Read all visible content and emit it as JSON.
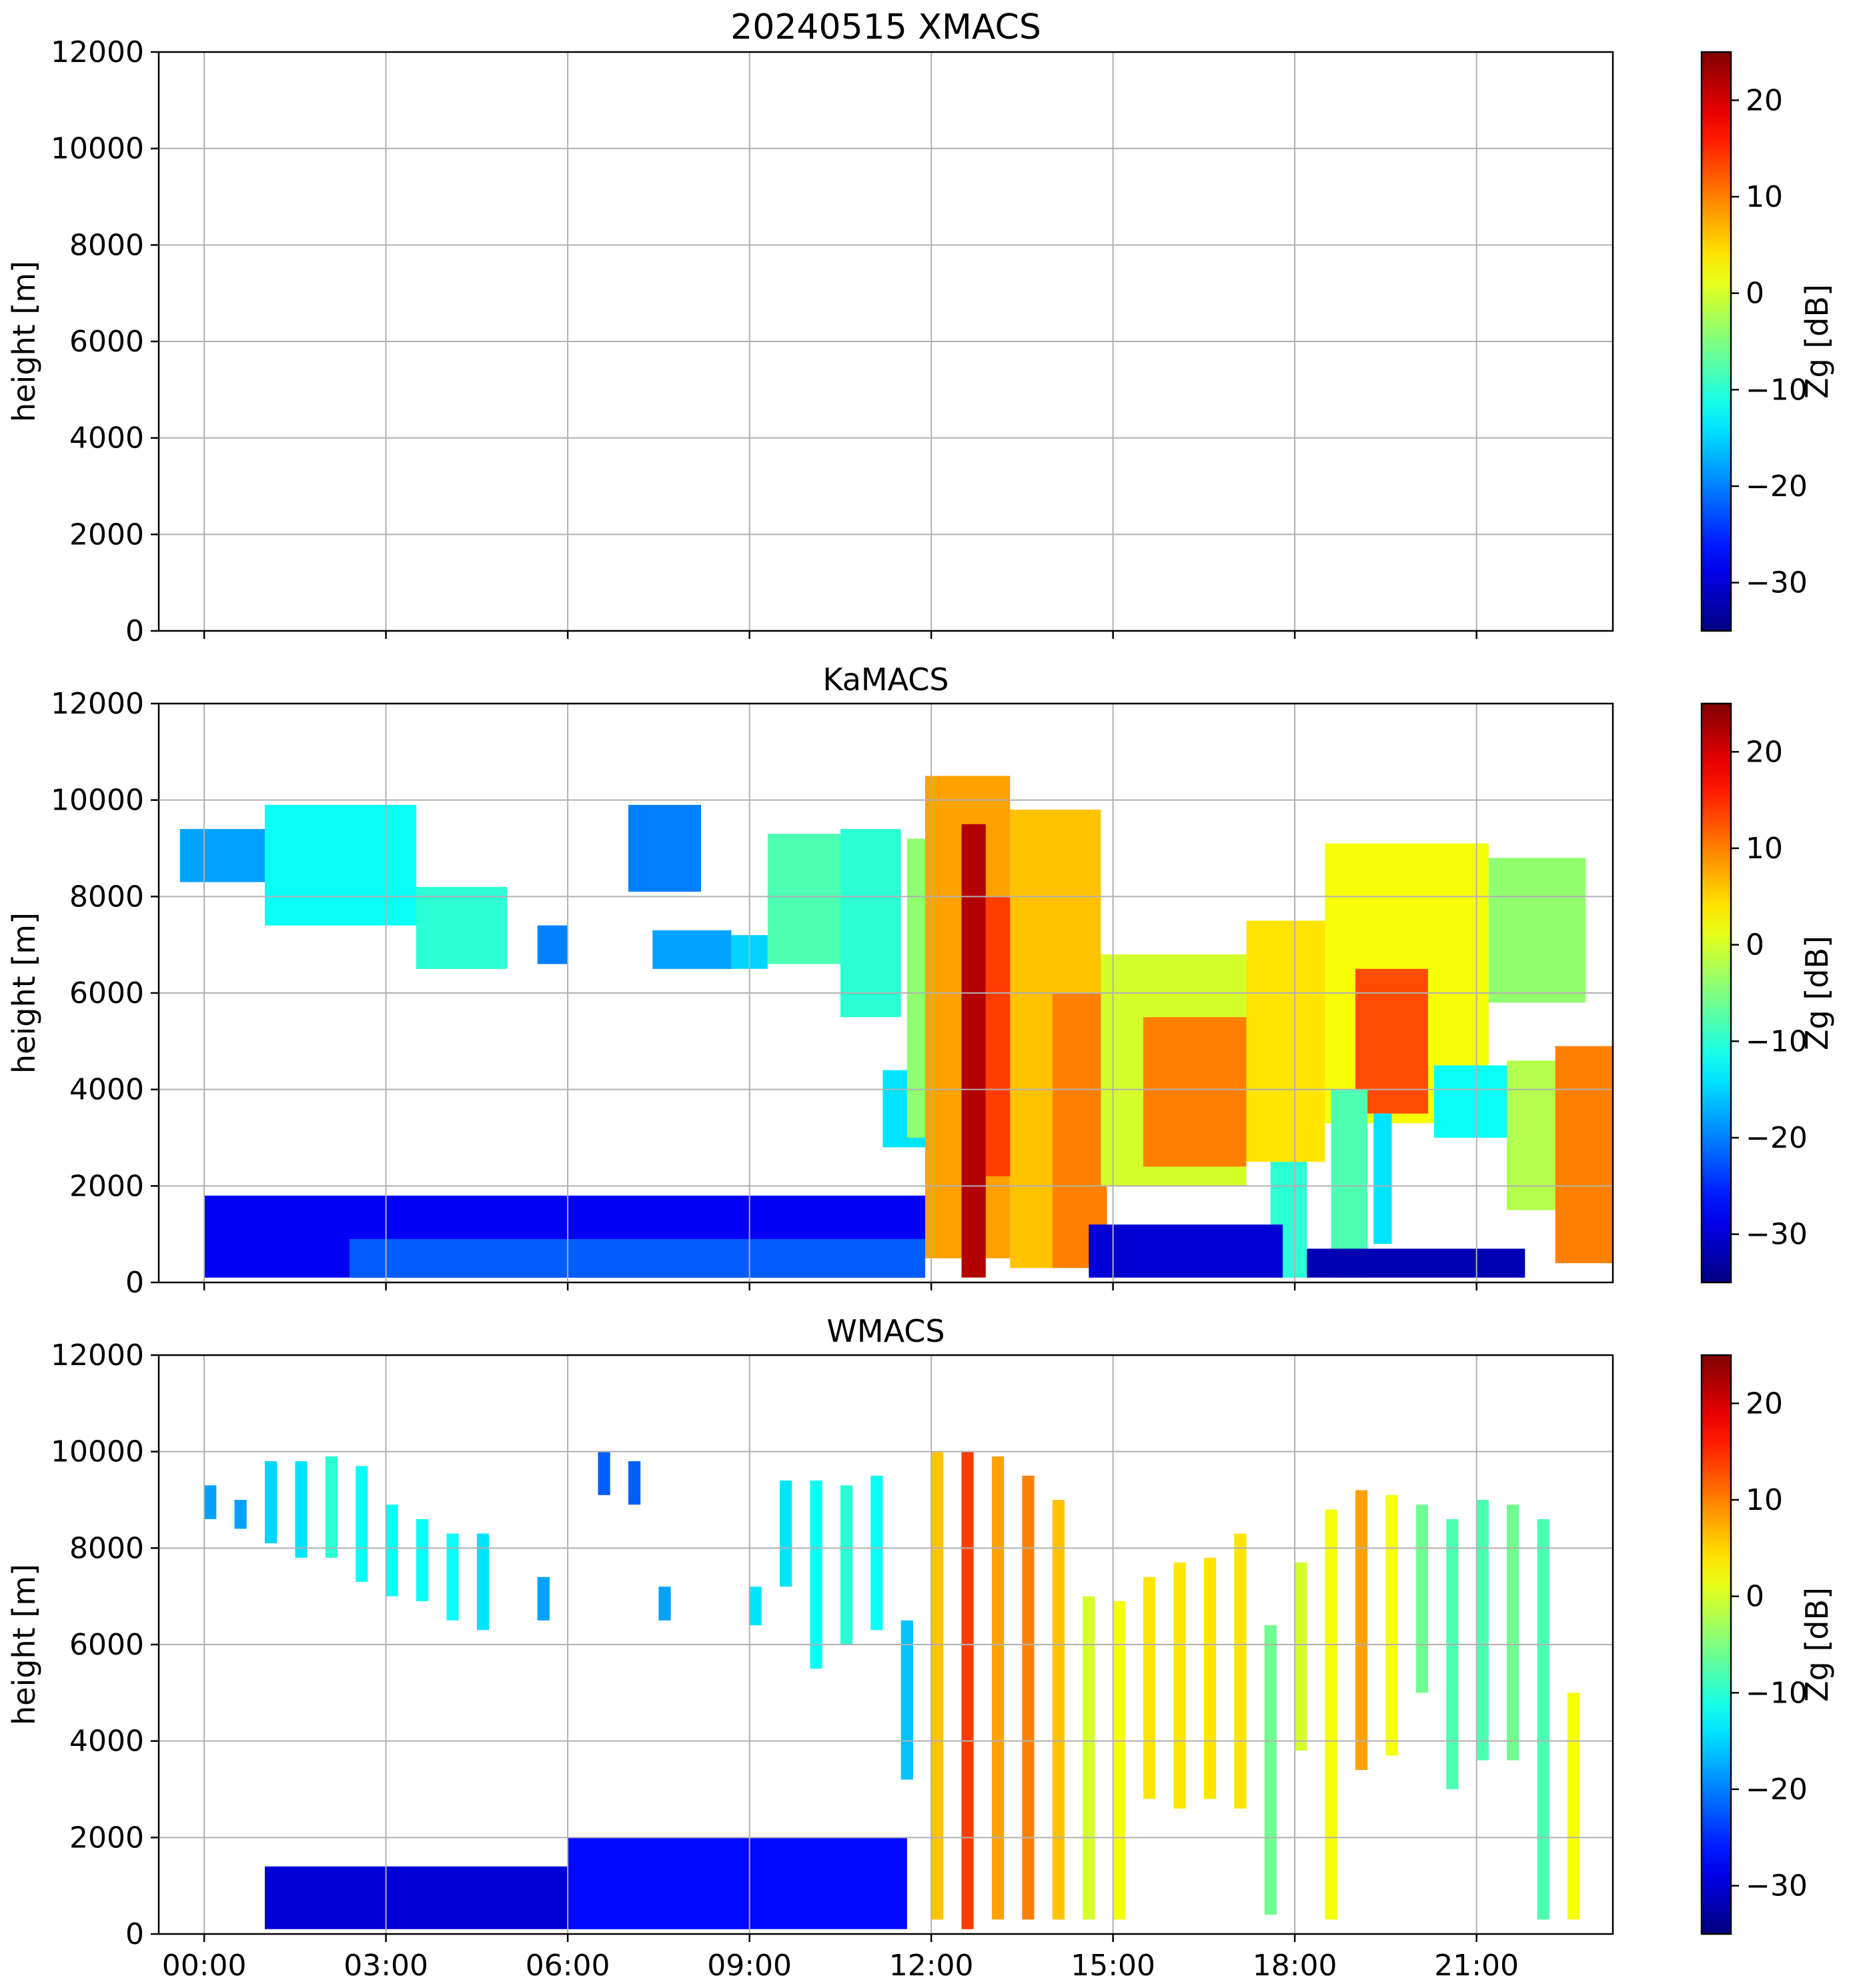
{
  "chart_data": [
    {
      "type": "heatmap",
      "title": "20240515 XMACS",
      "xlabel": "",
      "ylabel": "height [m]",
      "x_tick_labels": [
        "00:00",
        "03:00",
        "06:00",
        "09:00",
        "12:00",
        "15:00",
        "18:00",
        "21:00"
      ],
      "x_range_hours": [
        -0.75,
        23.25
      ],
      "ylim": [
        0,
        12000
      ],
      "y_ticks": [
        0,
        2000,
        4000,
        6000,
        8000,
        10000,
        12000
      ],
      "grid": true,
      "colorbar": {
        "label": "Zg [dB]",
        "range": [
          -35,
          25
        ],
        "ticks": [
          -30,
          -20,
          -10,
          0,
          10,
          20
        ],
        "tick_labels": [
          "−30",
          "−20",
          "−10",
          "0",
          "10",
          "20"
        ],
        "colormap": "jet"
      },
      "echoes": []
    },
    {
      "type": "heatmap",
      "title": "KaMACS",
      "xlabel": "",
      "ylabel": "height [m]",
      "x_tick_labels": [
        "00:00",
        "03:00",
        "06:00",
        "09:00",
        "12:00",
        "15:00",
        "18:00",
        "21:00"
      ],
      "x_range_hours": [
        -0.75,
        23.25
      ],
      "ylim": [
        0,
        12000
      ],
      "y_ticks": [
        0,
        2000,
        4000,
        6000,
        8000,
        10000,
        12000
      ],
      "grid": true,
      "colorbar": {
        "label": "Zg [dB]",
        "range": [
          -35,
          25
        ],
        "ticks": [
          -30,
          -20,
          -10,
          0,
          10,
          20
        ],
        "tick_labels": [
          "−30",
          "−20",
          "−10",
          "0",
          "10",
          "20"
        ],
        "colormap": "jet"
      },
      "echoes": [
        {
          "t0": -0.4,
          "t1": 1.5,
          "h0": 8300,
          "h1": 9400,
          "z": -18
        },
        {
          "t0": 1.0,
          "t1": 3.5,
          "h0": 7400,
          "h1": 9900,
          "z": -12
        },
        {
          "t0": 3.5,
          "t1": 5.0,
          "h0": 6500,
          "h1": 8200,
          "z": -10
        },
        {
          "t0": 5.5,
          "t1": 6.0,
          "h0": 6600,
          "h1": 7400,
          "z": -20
        },
        {
          "t0": 7.0,
          "t1": 8.2,
          "h0": 8100,
          "h1": 9900,
          "z": -20
        },
        {
          "t0": 7.4,
          "t1": 8.7,
          "h0": 6500,
          "h1": 7300,
          "z": -18
        },
        {
          "t0": 8.7,
          "t1": 9.3,
          "h0": 6500,
          "h1": 7200,
          "z": -15
        },
        {
          "t0": 9.3,
          "t1": 10.5,
          "h0": 6600,
          "h1": 9300,
          "z": -8
        },
        {
          "t0": 10.5,
          "t1": 11.5,
          "h0": 5500,
          "h1": 9400,
          "z": -10
        },
        {
          "t0": 11.2,
          "t1": 11.9,
          "h0": 2800,
          "h1": 4400,
          "z": -14
        },
        {
          "t0": 11.6,
          "t1": 12.4,
          "h0": 3000,
          "h1": 9200,
          "z": -4
        },
        {
          "t0": 11.9,
          "t1": 13.3,
          "h0": 500,
          "h1": 10500,
          "z": 8
        },
        {
          "t0": 12.5,
          "t1": 12.9,
          "h0": 100,
          "h1": 9500,
          "z": 22
        },
        {
          "t0": 12.9,
          "t1": 14.0,
          "h0": 2200,
          "h1": 8000,
          "z": 14
        },
        {
          "t0": 13.3,
          "t1": 14.8,
          "h0": 300,
          "h1": 9800,
          "z": 6
        },
        {
          "t0": 14.0,
          "t1": 14.9,
          "h0": 300,
          "h1": 6000,
          "z": 10
        },
        {
          "t0": 14.8,
          "t1": 17.2,
          "h0": 2000,
          "h1": 6800,
          "z": 0
        },
        {
          "t0": 15.5,
          "t1": 17.2,
          "h0": 2400,
          "h1": 5500,
          "z": 10
        },
        {
          "t0": 17.2,
          "t1": 18.5,
          "h0": 2500,
          "h1": 7500,
          "z": 4
        },
        {
          "t0": 17.6,
          "t1": 18.2,
          "h0": 100,
          "h1": 2500,
          "z": -10
        },
        {
          "t0": 18.5,
          "t1": 21.2,
          "h0": 3300,
          "h1": 9100,
          "z": 2
        },
        {
          "t0": 19.0,
          "t1": 20.2,
          "h0": 3500,
          "h1": 6500,
          "z": 13
        },
        {
          "t0": 18.6,
          "t1": 19.2,
          "h0": 100,
          "h1": 4000,
          "z": -8
        },
        {
          "t0": 19.3,
          "t1": 19.6,
          "h0": 800,
          "h1": 3500,
          "z": -14
        },
        {
          "t0": 21.2,
          "t1": 22.8,
          "h0": 5800,
          "h1": 8800,
          "z": -4
        },
        {
          "t0": 20.3,
          "t1": 21.5,
          "h0": 3000,
          "h1": 4500,
          "z": -12
        },
        {
          "t0": 21.5,
          "t1": 22.6,
          "h0": 1500,
          "h1": 4600,
          "z": -2
        },
        {
          "t0": 22.3,
          "t1": 23.25,
          "h0": 400,
          "h1": 4900,
          "z": 10
        },
        {
          "t0": 0.0,
          "t1": 11.9,
          "h0": 100,
          "h1": 1800,
          "z": -28
        },
        {
          "t0": 2.4,
          "t1": 11.9,
          "h0": 100,
          "h1": 900,
          "z": -22
        },
        {
          "t0": 14.6,
          "t1": 17.8,
          "h0": 100,
          "h1": 1200,
          "z": -30
        },
        {
          "t0": 18.2,
          "t1": 21.8,
          "h0": 100,
          "h1": 700,
          "z": -32
        }
      ]
    },
    {
      "type": "heatmap",
      "title": "WMACS",
      "xlabel": "",
      "ylabel": "height [m]",
      "x_tick_labels": [
        "00:00",
        "03:00",
        "06:00",
        "09:00",
        "12:00",
        "15:00",
        "18:00",
        "21:00"
      ],
      "x_range_hours": [
        -0.75,
        23.25
      ],
      "ylim": [
        0,
        12000
      ],
      "y_ticks": [
        0,
        2000,
        4000,
        6000,
        8000,
        10000,
        12000
      ],
      "grid": true,
      "colorbar": {
        "label": "Zg [dB]",
        "range": [
          -35,
          25
        ],
        "ticks": [
          -30,
          -20,
          -10,
          0,
          10,
          20
        ],
        "tick_labels": [
          "−30",
          "−20",
          "−10",
          "0",
          "10",
          "20"
        ],
        "colormap": "jet"
      },
      "echoes": [
        {
          "t0": 0.0,
          "t1": 0.2,
          "h0": 8600,
          "h1": 9300,
          "z": -18
        },
        {
          "t0": 0.5,
          "t1": 0.7,
          "h0": 8400,
          "h1": 9000,
          "z": -18
        },
        {
          "t0": 1.0,
          "t1": 1.2,
          "h0": 8100,
          "h1": 9800,
          "z": -15
        },
        {
          "t0": 1.5,
          "t1": 1.7,
          "h0": 7800,
          "h1": 9800,
          "z": -14
        },
        {
          "t0": 2.0,
          "t1": 2.2,
          "h0": 7800,
          "h1": 9900,
          "z": -10
        },
        {
          "t0": 2.5,
          "t1": 2.7,
          "h0": 7300,
          "h1": 9700,
          "z": -12
        },
        {
          "t0": 3.0,
          "t1": 3.2,
          "h0": 7000,
          "h1": 8900,
          "z": -12
        },
        {
          "t0": 3.5,
          "t1": 3.7,
          "h0": 6900,
          "h1": 8600,
          "z": -12
        },
        {
          "t0": 4.0,
          "t1": 4.2,
          "h0": 6500,
          "h1": 8300,
          "z": -12
        },
        {
          "t0": 4.5,
          "t1": 4.7,
          "h0": 6300,
          "h1": 8300,
          "z": -14
        },
        {
          "t0": 5.5,
          "t1": 5.7,
          "h0": 6500,
          "h1": 7400,
          "z": -18
        },
        {
          "t0": 6.5,
          "t1": 6.7,
          "h0": 9100,
          "h1": 10000,
          "z": -22
        },
        {
          "t0": 7.0,
          "t1": 7.2,
          "h0": 8900,
          "h1": 9800,
          "z": -22
        },
        {
          "t0": 7.5,
          "t1": 7.7,
          "h0": 6500,
          "h1": 7200,
          "z": -18
        },
        {
          "t0": 9.0,
          "t1": 9.2,
          "h0": 6400,
          "h1": 7200,
          "z": -14
        },
        {
          "t0": 9.5,
          "t1": 9.7,
          "h0": 7200,
          "h1": 9400,
          "z": -14
        },
        {
          "t0": 10.0,
          "t1": 10.2,
          "h0": 5500,
          "h1": 9400,
          "z": -12
        },
        {
          "t0": 10.5,
          "t1": 10.7,
          "h0": 6000,
          "h1": 9300,
          "z": -10
        },
        {
          "t0": 11.0,
          "t1": 11.2,
          "h0": 6300,
          "h1": 9500,
          "z": -12
        },
        {
          "t0": 11.5,
          "t1": 11.7,
          "h0": 3200,
          "h1": 6500,
          "z": -16
        },
        {
          "t0": 12.0,
          "t1": 12.2,
          "h0": 300,
          "h1": 10000,
          "z": 6
        },
        {
          "t0": 12.5,
          "t1": 12.7,
          "h0": 100,
          "h1": 10000,
          "z": 14
        },
        {
          "t0": 13.0,
          "t1": 13.2,
          "h0": 300,
          "h1": 9900,
          "z": 8
        },
        {
          "t0": 13.5,
          "t1": 13.7,
          "h0": 300,
          "h1": 9500,
          "z": 10
        },
        {
          "t0": 14.0,
          "t1": 14.2,
          "h0": 300,
          "h1": 9000,
          "z": 6
        },
        {
          "t0": 14.5,
          "t1": 14.7,
          "h0": 300,
          "h1": 7000,
          "z": 0
        },
        {
          "t0": 15.0,
          "t1": 15.2,
          "h0": 300,
          "h1": 6900,
          "z": 2
        },
        {
          "t0": 15.5,
          "t1": 15.7,
          "h0": 2800,
          "h1": 7400,
          "z": 4
        },
        {
          "t0": 16.0,
          "t1": 16.2,
          "h0": 2600,
          "h1": 7700,
          "z": 4
        },
        {
          "t0": 16.5,
          "t1": 16.7,
          "h0": 2800,
          "h1": 7800,
          "z": 4
        },
        {
          "t0": 17.0,
          "t1": 17.2,
          "h0": 2600,
          "h1": 8300,
          "z": 4
        },
        {
          "t0": 17.5,
          "t1": 17.7,
          "h0": 400,
          "h1": 6400,
          "z": -6
        },
        {
          "t0": 18.0,
          "t1": 18.2,
          "h0": 3800,
          "h1": 7700,
          "z": 0
        },
        {
          "t0": 18.5,
          "t1": 18.7,
          "h0": 300,
          "h1": 8800,
          "z": 2
        },
        {
          "t0": 19.0,
          "t1": 19.2,
          "h0": 3400,
          "h1": 9200,
          "z": 8
        },
        {
          "t0": 19.5,
          "t1": 19.7,
          "h0": 3700,
          "h1": 9100,
          "z": 2
        },
        {
          "t0": 20.0,
          "t1": 20.2,
          "h0": 5000,
          "h1": 8900,
          "z": -6
        },
        {
          "t0": 20.5,
          "t1": 20.7,
          "h0": 3000,
          "h1": 8600,
          "z": -8
        },
        {
          "t0": 21.0,
          "t1": 21.2,
          "h0": 3600,
          "h1": 9000,
          "z": -8
        },
        {
          "t0": 21.5,
          "t1": 21.7,
          "h0": 3600,
          "h1": 8900,
          "z": -6
        },
        {
          "t0": 22.0,
          "t1": 22.2,
          "h0": 300,
          "h1": 8600,
          "z": -8
        },
        {
          "t0": 22.5,
          "t1": 22.7,
          "h0": 300,
          "h1": 5000,
          "z": 2
        },
        {
          "t0": 1.0,
          "t1": 9.0,
          "h0": 100,
          "h1": 1400,
          "z": -30
        },
        {
          "t0": 6.0,
          "t1": 11.6,
          "h0": 100,
          "h1": 2000,
          "z": -27
        }
      ]
    }
  ]
}
